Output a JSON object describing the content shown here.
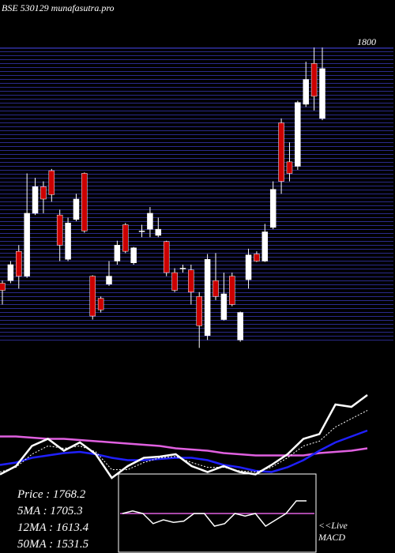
{
  "chart_data": {
    "type": "candlestick",
    "title": "BSE 530129 munafasutra.pro",
    "open": [
      1526,
      1529,
      1562,
      1534,
      1605,
      1635,
      1653,
      1603,
      1553,
      1598,
      1650,
      1534,
      1509,
      1525,
      1551,
      1592,
      1549,
      1585,
      1587,
      1580,
      1573,
      1538,
      1543,
      1541,
      1511,
      1467,
      1529,
      1485,
      1534,
      1462,
      1530,
      1559,
      1551,
      1589,
      1707,
      1663,
      1658,
      1728,
      1774,
      1712
    ],
    "high": [
      1529,
      1551,
      1569,
      1650,
      1645,
      1641,
      1655,
      1609,
      1600,
      1627,
      1651,
      1535,
      1511,
      1551,
      1574,
      1594,
      1567,
      1592,
      1612,
      1600,
      1574,
      1543,
      1547,
      1547,
      1516,
      1559,
      1560,
      1538,
      1538,
      1494,
      1565,
      1562,
      1593,
      1641,
      1712,
      1685,
      1732,
      1776,
      1792,
      1792
    ],
    "low": [
      1502,
      1526,
      1520,
      1532,
      1603,
      1605,
      1618,
      1551,
      1551,
      1596,
      1583,
      1485,
      1493,
      1523,
      1547,
      1560,
      1547,
      1578,
      1578,
      1578,
      1534,
      1516,
      1538,
      1502,
      1453,
      1462,
      1507,
      1484,
      1500,
      1460,
      1520,
      1550,
      1550,
      1587,
      1627,
      1641,
      1654,
      1725,
      1721,
      1710
    ],
    "close": [
      1518,
      1547,
      1534,
      1605,
      1635,
      1621,
      1626,
      1569,
      1594,
      1621,
      1585,
      1489,
      1496,
      1534,
      1569,
      1562,
      1566,
      1585,
      1605,
      1587,
      1538,
      1518,
      1543,
      1516,
      1478,
      1553,
      1511,
      1514,
      1502,
      1493,
      1558,
      1551,
      1584,
      1632,
      1641,
      1650,
      1730,
      1756,
      1737,
      1768.2
    ],
    "up_color": "#ffffff",
    "down_color": "#cc0000",
    "ylim": [
      1440,
      1810
    ],
    "yticks": [
      1800
    ],
    "lower_panel": {
      "ylim": [
        0,
        100
      ],
      "lines": [
        {
          "color": "#e060e0",
          "values": [
            45,
            45,
            44,
            43,
            43,
            42,
            41,
            40,
            39,
            38,
            37,
            35,
            34,
            33,
            31,
            30,
            29,
            29,
            29,
            29,
            31,
            32,
            33,
            35
          ]
        },
        {
          "color": "#2020ff",
          "values": [
            21,
            23,
            27,
            29,
            31,
            32,
            30,
            27,
            25,
            25,
            26,
            27,
            27,
            25,
            21,
            19,
            16,
            15,
            19,
            25,
            33,
            40,
            45,
            50
          ]
        },
        {
          "color": "#ffffff",
          "dashed": true,
          "values": [
            15,
            19,
            30,
            37,
            35,
            37,
            32,
            17,
            17,
            23,
            27,
            28,
            23,
            19,
            19,
            16,
            15,
            19,
            27,
            37,
            41,
            53,
            60,
            67
          ]
        },
        {
          "color": "#ffffff",
          "values": [
            13,
            20,
            37,
            43,
            33,
            40,
            30,
            10,
            20,
            27,
            28,
            30,
            20,
            15,
            20,
            15,
            13,
            21,
            30,
            43,
            47,
            72,
            70,
            80
          ]
        }
      ]
    },
    "macd": {
      "values": [
        0,
        2,
        0,
        -8,
        -5,
        -7,
        -6,
        0,
        0,
        -10,
        -8,
        0,
        -2,
        0,
        -10,
        -5,
        0,
        10,
        10
      ],
      "ylim": [
        -25,
        25
      ]
    },
    "stats": [
      "Price   : 1768.2",
      "5MA : 1705.3",
      "12MA : 1613.4",
      "50MA : 1531.5"
    ],
    "macd_label": [
      "<<Live",
      "MACD"
    ]
  }
}
